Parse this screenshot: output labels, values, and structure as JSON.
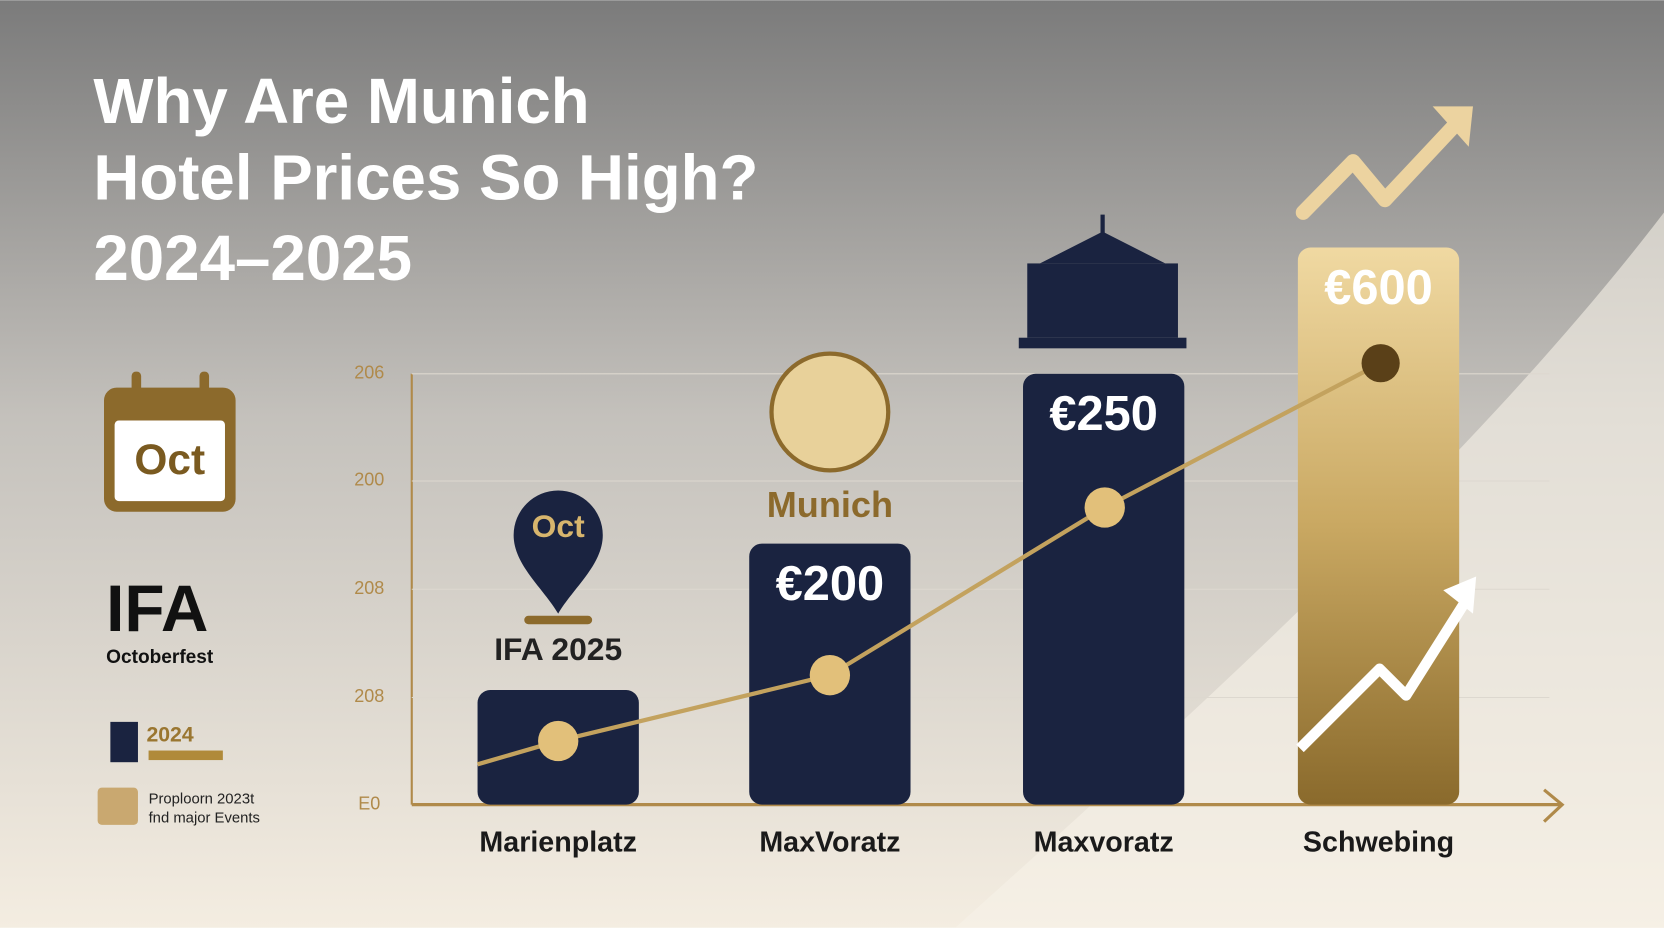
{
  "header": {
    "title_lines": [
      "Why Are Munich",
      "Hotel Prices So High?",
      "2024–2025"
    ]
  },
  "sidebar": {
    "calendar_label": "Oct",
    "event_title": "IFA",
    "event_subtitle": "Octoberfest",
    "year": "2024",
    "legend_lines": [
      "Proploorn 2023t",
      "fnd major Events"
    ]
  },
  "axis": {
    "labels": [
      "206",
      "200",
      "208",
      "208",
      "E0"
    ]
  },
  "annotations": {
    "pin_label": "Oct",
    "pin_caption": "IFA 2025",
    "globe_caption": "Munich"
  },
  "bars": [
    {
      "label": "Marienplatz"
    },
    {
      "label": "MaxVoratz",
      "price": "€200"
    },
    {
      "label": "Maxvoratz",
      "price": "€250"
    },
    {
      "label": "Schwebing",
      "price": "€600"
    }
  ]
}
